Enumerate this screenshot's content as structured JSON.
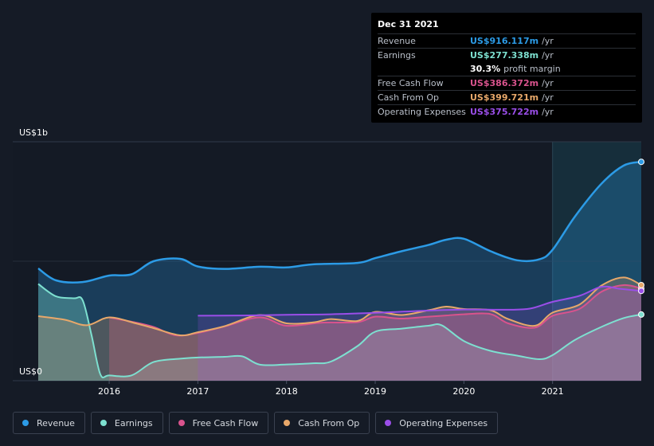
{
  "tooltip": {
    "date": "Dec 31 2021",
    "rows": [
      {
        "label": "Revenue",
        "value": "US$916.117m",
        "unit": "/yr",
        "color": "#2c9be6"
      },
      {
        "label": "Earnings",
        "value": "US$277.338m",
        "unit": "/yr",
        "color": "#7de0d0"
      },
      {
        "label": "",
        "value": "30.3%",
        "unit": "profit margin",
        "color": "#ffffff"
      },
      {
        "label": "Free Cash Flow",
        "value": "US$386.372m",
        "unit": "/yr",
        "color": "#d9538d"
      },
      {
        "label": "Cash From Op",
        "value": "US$399.721m",
        "unit": "/yr",
        "color": "#e8a86a"
      },
      {
        "label": "Operating Expenses",
        "value": "US$375.722m",
        "unit": "/yr",
        "color": "#9a4ee8"
      }
    ]
  },
  "axis": {
    "y_top": "US$1b",
    "y_bottom": "US$0"
  },
  "legend": [
    {
      "label": "Revenue",
      "color": "#2c9be6"
    },
    {
      "label": "Earnings",
      "color": "#7de0d0"
    },
    {
      "label": "Free Cash Flow",
      "color": "#d9538d"
    },
    {
      "label": "Cash From Op",
      "color": "#e8a86a"
    },
    {
      "label": "Operating Expenses",
      "color": "#9a4ee8"
    }
  ],
  "chart_data": {
    "type": "area",
    "xlabel": "",
    "ylabel": "",
    "ylim": [
      0,
      1000
    ],
    "xlim": [
      2015.2,
      2022.0
    ],
    "x_ticks": [
      "2016",
      "2017",
      "2018",
      "2019",
      "2020",
      "2021"
    ],
    "x_tick_values": [
      2016,
      2017,
      2018,
      2019,
      2020,
      2021
    ],
    "forecast_start": 2021.0,
    "series": [
      {
        "name": "Revenue",
        "color": "#2c9be6",
        "points": [
          [
            2015.2,
            470
          ],
          [
            2015.4,
            420
          ],
          [
            2015.7,
            413
          ],
          [
            2016.0,
            440
          ],
          [
            2016.25,
            445
          ],
          [
            2016.5,
            500
          ],
          [
            2016.8,
            510
          ],
          [
            2017.0,
            478
          ],
          [
            2017.3,
            468
          ],
          [
            2017.7,
            477
          ],
          [
            2018.0,
            474
          ],
          [
            2018.3,
            487
          ],
          [
            2018.8,
            493
          ],
          [
            2019.0,
            513
          ],
          [
            2019.3,
            542
          ],
          [
            2019.6,
            568
          ],
          [
            2019.8,
            590
          ],
          [
            2020.0,
            594
          ],
          [
            2020.3,
            542
          ],
          [
            2020.6,
            504
          ],
          [
            2020.85,
            508
          ],
          [
            2021.0,
            548
          ],
          [
            2021.25,
            686
          ],
          [
            2021.55,
            824
          ],
          [
            2021.8,
            900
          ],
          [
            2022.0,
            916
          ]
        ]
      },
      {
        "name": "Earnings",
        "color": "#7de0d0",
        "points": [
          [
            2015.2,
            405
          ],
          [
            2015.4,
            353
          ],
          [
            2015.6,
            345
          ],
          [
            2015.7,
            337
          ],
          [
            2015.8,
            192
          ],
          [
            2015.9,
            27
          ],
          [
            2016.0,
            22
          ],
          [
            2016.25,
            22
          ],
          [
            2016.5,
            78
          ],
          [
            2016.8,
            92
          ],
          [
            2017.0,
            97
          ],
          [
            2017.3,
            100
          ],
          [
            2017.5,
            102
          ],
          [
            2017.7,
            67
          ],
          [
            2018.0,
            68
          ],
          [
            2018.3,
            73
          ],
          [
            2018.5,
            80
          ],
          [
            2018.8,
            145
          ],
          [
            2019.0,
            205
          ],
          [
            2019.3,
            218
          ],
          [
            2019.6,
            230
          ],
          [
            2019.75,
            232
          ],
          [
            2020.0,
            166
          ],
          [
            2020.3,
            125
          ],
          [
            2020.6,
            105
          ],
          [
            2020.85,
            90
          ],
          [
            2021.0,
            107
          ],
          [
            2021.25,
            170
          ],
          [
            2021.55,
            225
          ],
          [
            2021.8,
            262
          ],
          [
            2022.0,
            277
          ]
        ]
      },
      {
        "name": "Free Cash Flow",
        "color": "#d9538d",
        "points": [
          [
            2016.0,
            265
          ],
          [
            2016.25,
            247
          ],
          [
            2016.5,
            225
          ],
          [
            2016.75,
            190
          ],
          [
            2017.0,
            200
          ],
          [
            2017.3,
            227
          ],
          [
            2017.7,
            265
          ],
          [
            2018.0,
            230
          ],
          [
            2018.4,
            243
          ],
          [
            2018.8,
            245
          ],
          [
            2019.0,
            268
          ],
          [
            2019.3,
            260
          ],
          [
            2019.6,
            268
          ],
          [
            2019.8,
            273
          ],
          [
            2020.0,
            278
          ],
          [
            2020.3,
            279
          ],
          [
            2020.5,
            240
          ],
          [
            2020.8,
            222
          ],
          [
            2021.0,
            272
          ],
          [
            2021.3,
            300
          ],
          [
            2021.55,
            372
          ],
          [
            2021.8,
            400
          ],
          [
            2022.0,
            386
          ]
        ]
      },
      {
        "name": "Cash From Op",
        "color": "#e8a86a",
        "points": [
          [
            2015.2,
            270
          ],
          [
            2015.5,
            255
          ],
          [
            2015.75,
            232
          ],
          [
            2016.0,
            265
          ],
          [
            2016.3,
            240
          ],
          [
            2016.5,
            220
          ],
          [
            2016.8,
            190
          ],
          [
            2017.0,
            203
          ],
          [
            2017.3,
            228
          ],
          [
            2017.7,
            275
          ],
          [
            2018.0,
            240
          ],
          [
            2018.3,
            244
          ],
          [
            2018.5,
            258
          ],
          [
            2018.8,
            250
          ],
          [
            2019.0,
            288
          ],
          [
            2019.3,
            275
          ],
          [
            2019.6,
            295
          ],
          [
            2019.8,
            310
          ],
          [
            2020.0,
            300
          ],
          [
            2020.3,
            295
          ],
          [
            2020.5,
            258
          ],
          [
            2020.8,
            230
          ],
          [
            2021.0,
            285
          ],
          [
            2021.3,
            318
          ],
          [
            2021.55,
            398
          ],
          [
            2021.8,
            432
          ],
          [
            2022.0,
            400
          ]
        ]
      },
      {
        "name": "Operating Expenses",
        "color": "#9a4ee8",
        "points": [
          [
            2017.0,
            272
          ],
          [
            2017.5,
            273
          ],
          [
            2018.0,
            276
          ],
          [
            2018.5,
            278
          ],
          [
            2019.0,
            284
          ],
          [
            2019.5,
            292
          ],
          [
            2020.0,
            298
          ],
          [
            2020.5,
            297
          ],
          [
            2020.75,
            302
          ],
          [
            2021.0,
            330
          ],
          [
            2021.3,
            355
          ],
          [
            2021.55,
            393
          ],
          [
            2021.75,
            385
          ],
          [
            2022.0,
            376
          ]
        ]
      }
    ]
  }
}
